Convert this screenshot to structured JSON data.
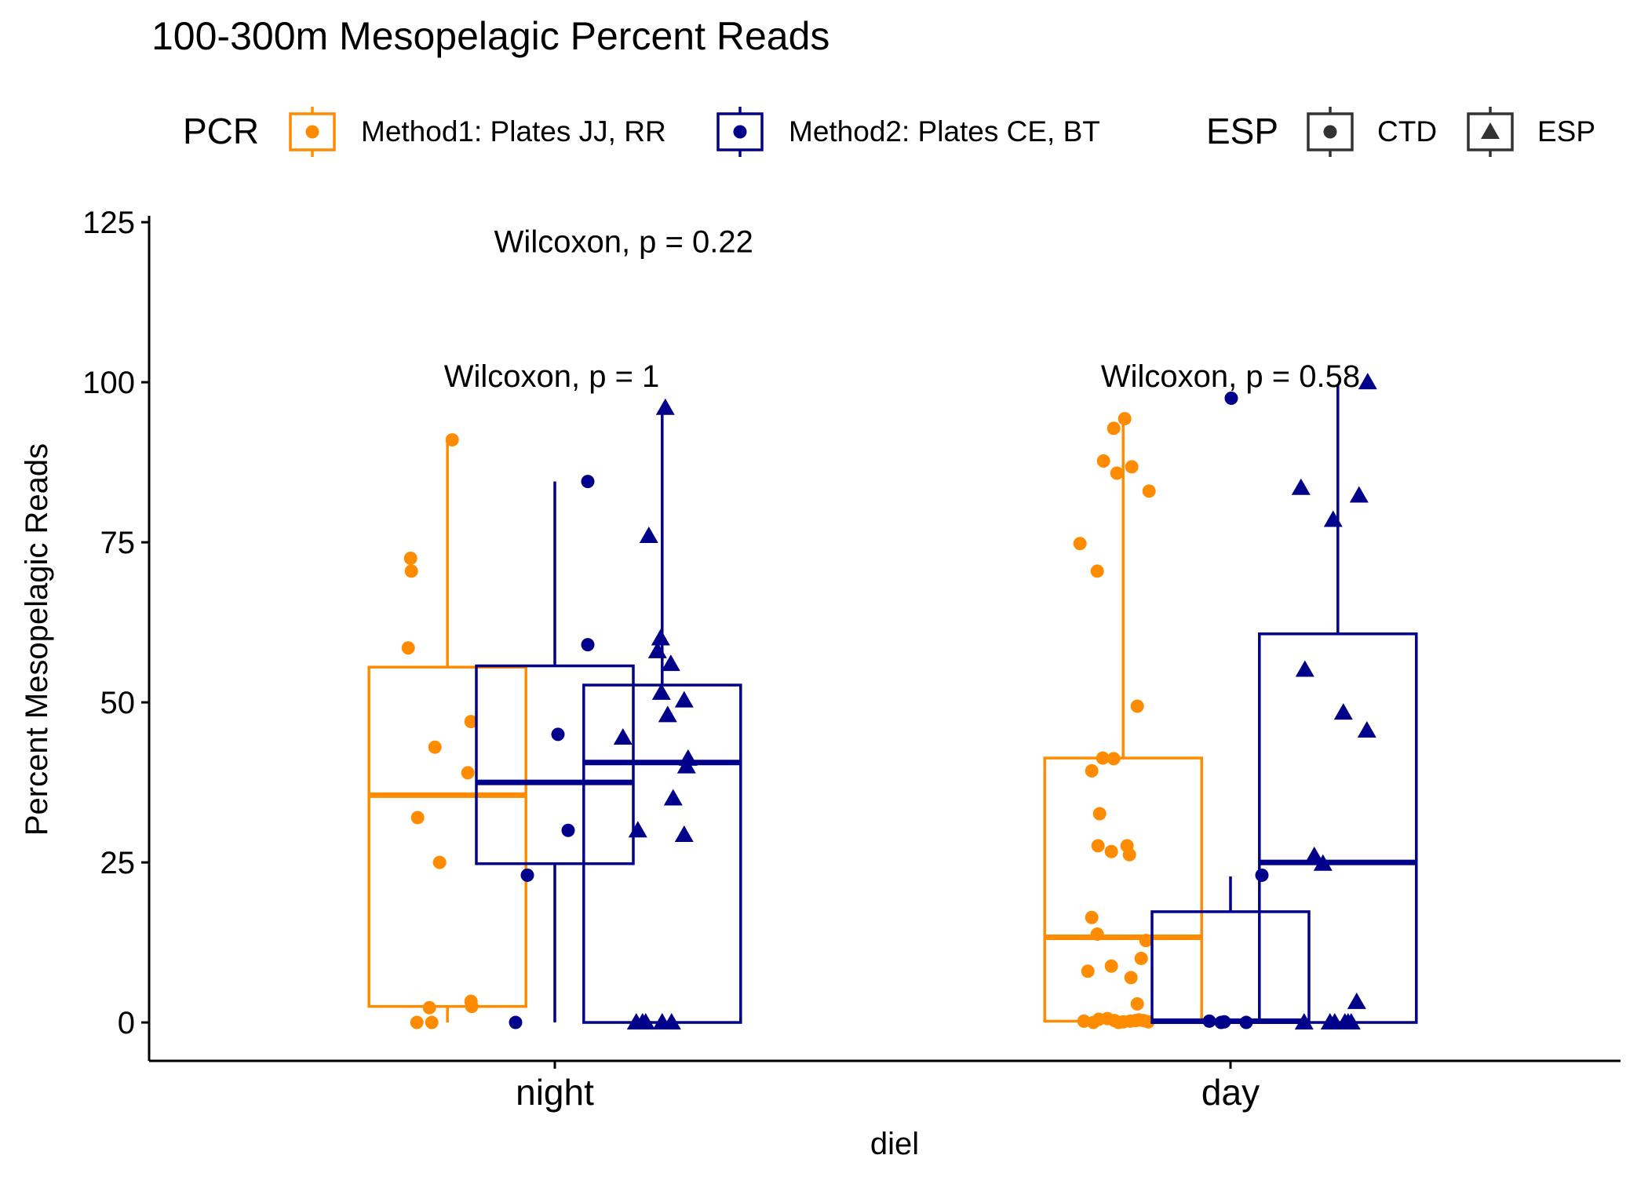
{
  "chart_data": {
    "type": "boxplot",
    "title": "100-300m Mesopelagic Percent Reads",
    "xlabel": "diel",
    "ylabel": "Percent Mesopelagic Reads",
    "categories": [
      "night",
      "day"
    ],
    "ylim": [
      -6,
      126
    ],
    "yticks": [
      0,
      25,
      50,
      75,
      100,
      125
    ],
    "grid": false,
    "legend_position": "top",
    "legends": [
      {
        "title": "PCR",
        "entries": [
          {
            "label": "Method1: Plates JJ, RR",
            "color": "#FF8C00"
          },
          {
            "label": "Method2: Plates CE, BT",
            "color": "#00008B"
          }
        ]
      },
      {
        "title": "ESP",
        "entries": [
          {
            "label": "CTD",
            "shape": "circle"
          },
          {
            "label": "ESP",
            "shape": "triangle"
          }
        ]
      }
    ],
    "annotations": [
      {
        "text": "Wilcoxon, p = 0.22",
        "category": "night",
        "offset": 0.22,
        "y": 122
      },
      {
        "text": "Wilcoxon, p = 1",
        "category": "night",
        "offset": -0.01,
        "y": 101
      },
      {
        "text": "Wilcoxon, p = 0.58",
        "category": "day",
        "offset": 0.0,
        "y": 101
      }
    ],
    "series": [
      {
        "category": "night",
        "offset": -0.6,
        "pcr": "Method1: Plates JJ, RR",
        "color": "#FF8C00",
        "box": {
          "min": 0,
          "q1": 2.5,
          "median": 35.5,
          "q3": 55.5,
          "max": 91
        },
        "points": [
          {
            "dx": -0.47,
            "y": 72.5,
            "shape": "circle"
          },
          {
            "dx": -0.46,
            "y": 70.5,
            "shape": "circle"
          },
          {
            "dx": -0.5,
            "y": 58.5,
            "shape": "circle"
          },
          {
            "dx": 0.06,
            "y": 91,
            "shape": "circle"
          },
          {
            "dx": -0.16,
            "y": 43,
            "shape": "circle"
          },
          {
            "dx": 0.3,
            "y": 47,
            "shape": "circle"
          },
          {
            "dx": 0.26,
            "y": 39,
            "shape": "circle"
          },
          {
            "dx": -0.38,
            "y": 32,
            "shape": "circle"
          },
          {
            "dx": -0.1,
            "y": 25,
            "shape": "circle"
          },
          {
            "dx": 0.3,
            "y": 3.3,
            "shape": "circle"
          },
          {
            "dx": 0.31,
            "y": 2.5,
            "shape": "circle"
          },
          {
            "dx": -0.23,
            "y": 2.3,
            "shape": "circle"
          },
          {
            "dx": -0.39,
            "y": 0,
            "shape": "circle"
          },
          {
            "dx": -0.2,
            "y": 0,
            "shape": "circle"
          }
        ]
      },
      {
        "category": "night",
        "offset": 0.0,
        "pcr": "Method2: Plates CE, BT",
        "color": "#00008B",
        "box": {
          "min": 0,
          "q1": 24.8,
          "median": 37.5,
          "q3": 55.7,
          "max": 84.5
        },
        "points": [
          {
            "dx": 0.42,
            "y": 84.5,
            "shape": "circle"
          },
          {
            "dx": 0.42,
            "y": 59,
            "shape": "circle"
          },
          {
            "dx": 0.04,
            "y": 45,
            "shape": "circle"
          },
          {
            "dx": 0.17,
            "y": 30,
            "shape": "circle"
          },
          {
            "dx": -0.35,
            "y": 23,
            "shape": "circle"
          },
          {
            "dx": -0.5,
            "y": 0,
            "shape": "circle"
          }
        ]
      },
      {
        "category": "night",
        "offset": 0.6,
        "pcr": "Method2: Plates CE, BT",
        "color": "#00008B",
        "box": {
          "min": 0,
          "q1": 0,
          "median": 40.6,
          "q3": 52.7,
          "max": 96
        },
        "points": [
          {
            "dx": 0.04,
            "y": 96,
            "shape": "triangle"
          },
          {
            "dx": -0.17,
            "y": 76,
            "shape": "triangle"
          },
          {
            "dx": -0.02,
            "y": 60,
            "shape": "triangle"
          },
          {
            "dx": -0.06,
            "y": 58,
            "shape": "triangle"
          },
          {
            "dx": 0.11,
            "y": 56,
            "shape": "triangle"
          },
          {
            "dx": -0.01,
            "y": 51.5,
            "shape": "triangle"
          },
          {
            "dx": 0.28,
            "y": 50.3,
            "shape": "triangle"
          },
          {
            "dx": 0.07,
            "y": 48,
            "shape": "triangle"
          },
          {
            "dx": -0.5,
            "y": 44.5,
            "shape": "triangle"
          },
          {
            "dx": 0.33,
            "y": 41.2,
            "shape": "triangle"
          },
          {
            "dx": 0.31,
            "y": 40,
            "shape": "triangle"
          },
          {
            "dx": 0.14,
            "y": 35,
            "shape": "triangle"
          },
          {
            "dx": -0.31,
            "y": 30,
            "shape": "triangle"
          },
          {
            "dx": 0.28,
            "y": 29.3,
            "shape": "triangle"
          },
          {
            "dx": -0.33,
            "y": 0,
            "shape": "triangle"
          },
          {
            "dx": -0.25,
            "y": 0,
            "shape": "triangle"
          },
          {
            "dx": -0.21,
            "y": 0,
            "shape": "triangle"
          },
          {
            "dx": 0.0,
            "y": 0,
            "shape": "triangle"
          },
          {
            "dx": 0.12,
            "y": 0,
            "shape": "triangle"
          }
        ]
      },
      {
        "category": "day",
        "offset": -0.6,
        "pcr": "Method1: Plates JJ, RR",
        "color": "#FF8C00",
        "box": {
          "min": 0,
          "q1": 0.2,
          "median": 13.3,
          "q3": 41.3,
          "max": 94.2
        },
        "points": [
          {
            "dx": 0.02,
            "y": 94.3,
            "shape": "circle"
          },
          {
            "dx": -0.12,
            "y": 92.8,
            "shape": "circle"
          },
          {
            "dx": -0.25,
            "y": 87.7,
            "shape": "circle"
          },
          {
            "dx": 0.11,
            "y": 86.8,
            "shape": "circle"
          },
          {
            "dx": -0.08,
            "y": 85.8,
            "shape": "circle"
          },
          {
            "dx": 0.33,
            "y": 83,
            "shape": "circle"
          },
          {
            "dx": -0.55,
            "y": 74.8,
            "shape": "circle"
          },
          {
            "dx": -0.33,
            "y": 70.5,
            "shape": "circle"
          },
          {
            "dx": 0.18,
            "y": 49.4,
            "shape": "circle"
          },
          {
            "dx": -0.26,
            "y": 41.3,
            "shape": "circle"
          },
          {
            "dx": -0.12,
            "y": 41.2,
            "shape": "circle"
          },
          {
            "dx": -0.4,
            "y": 39.3,
            "shape": "circle"
          },
          {
            "dx": -0.3,
            "y": 32.6,
            "shape": "circle"
          },
          {
            "dx": -0.32,
            "y": 27.6,
            "shape": "circle"
          },
          {
            "dx": 0.05,
            "y": 27.6,
            "shape": "circle"
          },
          {
            "dx": -0.15,
            "y": 26.7,
            "shape": "circle"
          },
          {
            "dx": 0.08,
            "y": 26.2,
            "shape": "circle"
          },
          {
            "dx": -0.4,
            "y": 16.4,
            "shape": "circle"
          },
          {
            "dx": -0.33,
            "y": 13.8,
            "shape": "circle"
          },
          {
            "dx": 0.29,
            "y": 12.8,
            "shape": "circle"
          },
          {
            "dx": 0.23,
            "y": 10,
            "shape": "circle"
          },
          {
            "dx": -0.15,
            "y": 8.8,
            "shape": "circle"
          },
          {
            "dx": -0.45,
            "y": 8,
            "shape": "circle"
          },
          {
            "dx": 0.1,
            "y": 7,
            "shape": "circle"
          },
          {
            "dx": 0.18,
            "y": 2.9,
            "shape": "circle"
          },
          {
            "dx": -0.5,
            "y": 0.2,
            "shape": "circle"
          },
          {
            "dx": -0.38,
            "y": 0,
            "shape": "circle"
          },
          {
            "dx": -0.31,
            "y": 0.5,
            "shape": "circle"
          },
          {
            "dx": -0.2,
            "y": 0.6,
            "shape": "circle"
          },
          {
            "dx": -0.11,
            "y": 0.3,
            "shape": "circle"
          },
          {
            "dx": -0.06,
            "y": 0,
            "shape": "circle"
          },
          {
            "dx": 0.0,
            "y": 0.1,
            "shape": "circle"
          },
          {
            "dx": 0.09,
            "y": 0.2,
            "shape": "circle"
          },
          {
            "dx": 0.16,
            "y": 0.3,
            "shape": "circle"
          },
          {
            "dx": 0.2,
            "y": 0.4,
            "shape": "circle"
          },
          {
            "dx": 0.26,
            "y": 0.3,
            "shape": "circle"
          },
          {
            "dx": 0.32,
            "y": 0.1,
            "shape": "circle"
          }
        ]
      },
      {
        "category": "day",
        "offset": 0.0,
        "pcr": "Method2: Plates CE, BT",
        "color": "#00008B",
        "box": {
          "min": 0,
          "q1": 0,
          "median": 0.2,
          "q3": 17.3,
          "max": 22.8
        },
        "points": [
          {
            "dx": 0.01,
            "y": 97.5,
            "shape": "circle"
          },
          {
            "dx": 0.4,
            "y": 23,
            "shape": "circle"
          },
          {
            "dx": -0.27,
            "y": 0.2,
            "shape": "circle"
          },
          {
            "dx": -0.12,
            "y": 0,
            "shape": "circle"
          },
          {
            "dx": -0.08,
            "y": 0.1,
            "shape": "circle"
          },
          {
            "dx": 0.2,
            "y": 0,
            "shape": "circle"
          }
        ]
      },
      {
        "category": "day",
        "offset": 0.6,
        "pcr": "Method2: Plates CE, BT",
        "color": "#00008B",
        "box": {
          "min": 0,
          "q1": 0,
          "median": 25,
          "q3": 60.7,
          "max": 99.5
        },
        "points": [
          {
            "dx": 0.38,
            "y": 100,
            "shape": "triangle"
          },
          {
            "dx": -0.47,
            "y": 83.5,
            "shape": "triangle"
          },
          {
            "dx": 0.27,
            "y": 82.3,
            "shape": "triangle"
          },
          {
            "dx": -0.06,
            "y": 78.5,
            "shape": "triangle"
          },
          {
            "dx": -0.42,
            "y": 55.1,
            "shape": "triangle"
          },
          {
            "dx": 0.07,
            "y": 48.4,
            "shape": "triangle"
          },
          {
            "dx": 0.37,
            "y": 45.6,
            "shape": "triangle"
          },
          {
            "dx": -0.3,
            "y": 26,
            "shape": "triangle"
          },
          {
            "dx": -0.19,
            "y": 24.8,
            "shape": "triangle"
          },
          {
            "dx": 0.24,
            "y": 3.2,
            "shape": "triangle"
          },
          {
            "dx": -0.43,
            "y": 0,
            "shape": "triangle"
          },
          {
            "dx": -0.1,
            "y": 0,
            "shape": "triangle"
          },
          {
            "dx": -0.04,
            "y": 0,
            "shape": "triangle"
          },
          {
            "dx": 0.09,
            "y": 0,
            "shape": "triangle"
          },
          {
            "dx": 0.13,
            "y": 0,
            "shape": "triangle"
          },
          {
            "dx": 0.17,
            "y": 0,
            "shape": "triangle"
          }
        ]
      }
    ]
  }
}
